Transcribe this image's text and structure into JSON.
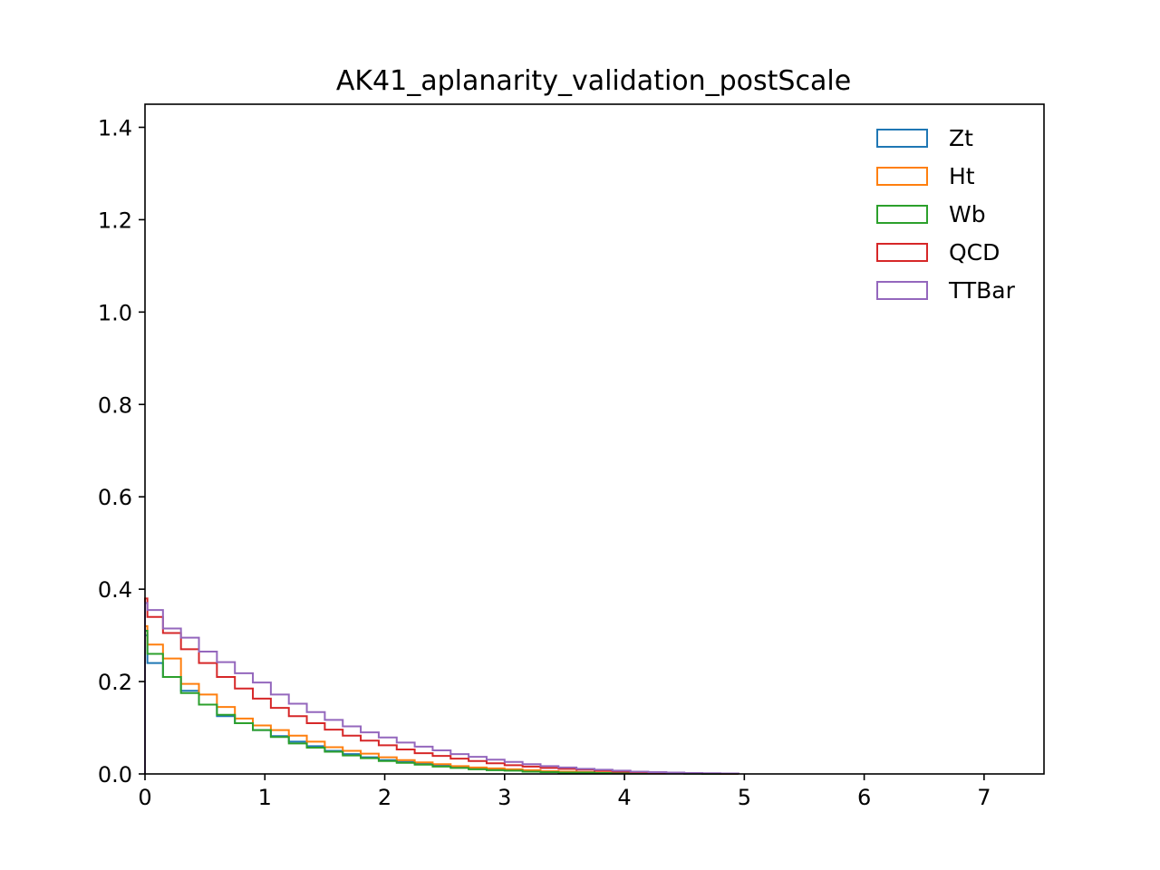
{
  "chart_data": {
    "type": "line",
    "style": "step-histogram",
    "title": "AK41_aplanarity_validation_postScale",
    "xlabel": "",
    "ylabel": "",
    "xlim": [
      0,
      7.5
    ],
    "ylim": [
      0,
      1.45
    ],
    "xticks": [
      0,
      1,
      2,
      3,
      4,
      5,
      6,
      7
    ],
    "xtick_labels": [
      "0",
      "1",
      "2",
      "3",
      "4",
      "5",
      "6",
      "7"
    ],
    "yticks": [
      0.0,
      0.2,
      0.4,
      0.6,
      0.8,
      1.0,
      1.2,
      1.4
    ],
    "ytick_labels": [
      "0.0",
      "0.2",
      "0.4",
      "0.6",
      "0.8",
      "1.0",
      "1.2",
      "1.4"
    ],
    "grid": false,
    "legend_position": "top-right",
    "bin_edges": [
      0,
      0.02,
      0.15,
      0.3,
      0.45,
      0.6,
      0.75,
      0.9,
      1.05,
      1.2,
      1.35,
      1.5,
      1.65,
      1.8,
      1.95,
      2.1,
      2.25,
      2.4,
      2.55,
      2.7,
      2.85,
      3.0,
      3.15,
      3.3,
      3.45,
      3.6,
      3.75,
      3.9,
      4.05,
      4.2,
      4.35,
      4.5,
      4.65,
      4.8,
      4.95
    ],
    "series": [
      {
        "name": "Zt",
        "color": "#1f77b4",
        "values": [
          0.3,
          0.24,
          0.21,
          0.18,
          0.15,
          0.125,
          0.11,
          0.095,
          0.082,
          0.07,
          0.06,
          0.05,
          0.043,
          0.036,
          0.03,
          0.026,
          0.022,
          0.018,
          0.015,
          0.012,
          0.01,
          0.008,
          0.007,
          0.006,
          0.005,
          0.004,
          0.003,
          0.002,
          0.002,
          0.001,
          0.001,
          0.001,
          0.0005,
          0.0003
        ]
      },
      {
        "name": "Ht",
        "color": "#ff7f0e",
        "values": [
          0.32,
          0.28,
          0.25,
          0.195,
          0.172,
          0.145,
          0.12,
          0.105,
          0.095,
          0.083,
          0.07,
          0.058,
          0.05,
          0.044,
          0.036,
          0.03,
          0.025,
          0.021,
          0.017,
          0.014,
          0.012,
          0.01,
          0.008,
          0.006,
          0.005,
          0.004,
          0.003,
          0.002,
          0.002,
          0.001,
          0.001,
          0.001,
          0.0005,
          0.0003
        ]
      },
      {
        "name": "Wb",
        "color": "#2ca02c",
        "values": [
          0.31,
          0.26,
          0.21,
          0.175,
          0.15,
          0.128,
          0.11,
          0.095,
          0.08,
          0.066,
          0.057,
          0.048,
          0.04,
          0.034,
          0.028,
          0.024,
          0.02,
          0.016,
          0.013,
          0.01,
          0.008,
          0.007,
          0.005,
          0.004,
          0.003,
          0.003,
          0.002,
          0.002,
          0.001,
          0.001,
          0.001,
          0.0005,
          0.0003,
          0.0002
        ]
      },
      {
        "name": "QCD",
        "color": "#d62728",
        "values": [
          0.38,
          0.34,
          0.305,
          0.27,
          0.24,
          0.21,
          0.185,
          0.163,
          0.143,
          0.125,
          0.11,
          0.096,
          0.083,
          0.072,
          0.062,
          0.053,
          0.045,
          0.039,
          0.033,
          0.028,
          0.023,
          0.019,
          0.016,
          0.013,
          0.011,
          0.009,
          0.007,
          0.005,
          0.004,
          0.003,
          0.002,
          0.0015,
          0.001,
          0.0005
        ]
      },
      {
        "name": "TTBar",
        "color": "#9467bd",
        "values": [
          0.37,
          0.355,
          0.315,
          0.295,
          0.265,
          0.242,
          0.218,
          0.198,
          0.172,
          0.152,
          0.134,
          0.117,
          0.103,
          0.09,
          0.079,
          0.068,
          0.059,
          0.051,
          0.043,
          0.037,
          0.031,
          0.026,
          0.021,
          0.017,
          0.014,
          0.011,
          0.009,
          0.007,
          0.005,
          0.004,
          0.003,
          0.002,
          0.0015,
          0.001
        ]
      }
    ]
  }
}
